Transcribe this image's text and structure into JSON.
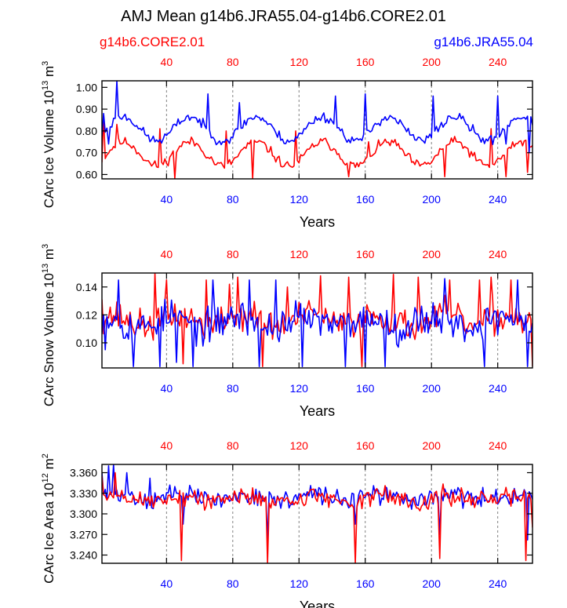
{
  "figure_title": "AMJ Mean g14b6.JRA55.04-g14b6.CORE2.01",
  "legend": {
    "series_a": {
      "label": "g14b6.CORE2.01",
      "color": "#ff0000"
    },
    "series_b": {
      "label": "g14b6.JRA55.04",
      "color": "#0000ff"
    }
  },
  "colors": {
    "axis": "#000000",
    "grid": "#808080",
    "background": "#ffffff"
  },
  "chart_data": [
    {
      "type": "line",
      "title": "",
      "xlabel": "Years",
      "ylabel": "CArc Ice Volume 10^13 m^3",
      "ylabel_parts": {
        "base": "CArc Ice Volume 10",
        "exp1": "13",
        "mid": " m",
        "exp2": "3"
      },
      "xlim": [
        1,
        261
      ],
      "ylim": [
        0.58,
        1.03
      ],
      "yticks": [
        0.6,
        0.7,
        0.8,
        0.9,
        1.0
      ],
      "yticklabels": [
        "0.60",
        "0.70",
        "0.80",
        "0.90",
        "1.00"
      ],
      "xticks": [
        40,
        80,
        120,
        160,
        200,
        240
      ],
      "xticklabels": [
        "40",
        "80",
        "120",
        "160",
        "200",
        "240"
      ],
      "top_xticklabels": [
        "40",
        "80",
        "120",
        "160",
        "200",
        "240"
      ],
      "grid": "vertical dashed at x ticks",
      "series": [
        {
          "name": "g14b6.CORE2.01",
          "key": "a",
          "mean": 0.695,
          "amp": 0.055,
          "phase": 0.6,
          "shape": "cycle",
          "noise": 0.022,
          "seed": 11,
          "spikes": [
            [
              2,
              0.87
            ],
            [
              10,
              0.83
            ],
            [
              36,
              0.81
            ],
            [
              45,
              0.58
            ],
            [
              76,
              0.8
            ],
            [
              92,
              0.58
            ],
            [
              118,
              0.8
            ],
            [
              150,
              0.59
            ],
            [
              162,
              0.75
            ],
            [
              208,
              0.59
            ],
            [
              236,
              0.81
            ],
            [
              245,
              0.59
            ],
            [
              258,
              0.61
            ]
          ]
        },
        {
          "name": "g14b6.JRA55.04",
          "key": "b",
          "mean": 0.81,
          "amp": 0.055,
          "phase": 0.6,
          "shape": "cycle",
          "noise": 0.022,
          "seed": 23,
          "spikes": [
            [
              2,
              0.88
            ],
            [
              5,
              0.74
            ],
            [
              10,
              1.03
            ],
            [
              65,
              0.97
            ],
            [
              84,
              0.93
            ],
            [
              142,
              0.96
            ],
            [
              160,
              0.97
            ],
            [
              201,
              0.96
            ],
            [
              240,
              0.96
            ],
            [
              245,
              0.74
            ],
            [
              259,
              0.7
            ]
          ]
        }
      ]
    },
    {
      "type": "line",
      "title": "",
      "xlabel": "Years",
      "ylabel": "CArc Snow Volume 10^13 m^3",
      "ylabel_parts": {
        "base": "CArc Snow Volume 10",
        "exp1": "13",
        "mid": " m",
        "exp2": "3"
      },
      "xlim": [
        1,
        261
      ],
      "ylim": [
        0.082,
        0.15
      ],
      "yticks": [
        0.1,
        0.12,
        0.14
      ],
      "yticklabels": [
        "0.10",
        "0.12",
        "0.14"
      ],
      "xticks": [
        40,
        80,
        120,
        160,
        200,
        240
      ],
      "xticklabels": [
        "40",
        "80",
        "120",
        "160",
        "200",
        "240"
      ],
      "top_xticklabels": [
        "40",
        "80",
        "120",
        "160",
        "200",
        "240"
      ],
      "grid": "vertical dashed at x ticks",
      "series": [
        {
          "name": "g14b6.CORE2.01",
          "key": "a",
          "mean": 0.116,
          "amp": 0.004,
          "phase": 0.5,
          "shape": "sin",
          "noise": 0.011,
          "seed": 37,
          "spikes": [
            [
              1,
              0.131
            ],
            [
              33,
              0.15
            ],
            [
              40,
              0.145
            ],
            [
              50,
              0.085
            ],
            [
              64,
              0.145
            ],
            [
              78,
              0.142
            ],
            [
              83,
              0.147
            ],
            [
              98,
              0.083
            ],
            [
              113,
              0.14
            ],
            [
              133,
              0.148
            ],
            [
              150,
              0.147
            ],
            [
              158,
              0.083
            ],
            [
              177,
              0.149
            ],
            [
              192,
              0.147
            ],
            [
              211,
              0.145
            ],
            [
              229,
              0.145
            ],
            [
              236,
              0.147
            ],
            [
              248,
              0.145
            ],
            [
              261,
              0.083
            ]
          ]
        },
        {
          "name": "g14b6.JRA55.04",
          "key": "b",
          "mean": 0.115,
          "amp": 0.004,
          "phase": 1.2,
          "shape": "sin",
          "noise": 0.012,
          "seed": 53,
          "spikes": [
            [
              3,
              0.095
            ],
            [
              11,
              0.145
            ],
            [
              20,
              0.083
            ],
            [
              36,
              0.083
            ],
            [
              46,
              0.086
            ],
            [
              56,
              0.083
            ],
            [
              68,
              0.145
            ],
            [
              90,
              0.145
            ],
            [
              96,
              0.083
            ],
            [
              106,
              0.145
            ],
            [
              122,
              0.083
            ],
            [
              148,
              0.083
            ],
            [
              160,
              0.083
            ],
            [
              172,
              0.083
            ],
            [
              208,
              0.146
            ],
            [
              232,
              0.083
            ],
            [
              252,
              0.145
            ],
            [
              258,
              0.083
            ]
          ]
        }
      ]
    },
    {
      "type": "line",
      "title": "",
      "xlabel": "Years",
      "ylabel": "CArc Ice Area 10^12 m^2",
      "ylabel_parts": {
        "base": "CArc Ice Area 10",
        "exp1": "12",
        "mid": " m",
        "exp2": "2"
      },
      "xlim": [
        1,
        261
      ],
      "ylim": [
        3.228,
        3.372
      ],
      "yticks": [
        3.24,
        3.27,
        3.3,
        3.33,
        3.36
      ],
      "yticklabels": [
        "3.240",
        "3.270",
        "3.300",
        "3.330",
        "3.360"
      ],
      "xticks": [
        40,
        80,
        120,
        160,
        200,
        240
      ],
      "xticklabels": [
        "40",
        "80",
        "120",
        "160",
        "200",
        "240"
      ],
      "top_xticklabels": [
        "40",
        "80",
        "120",
        "160",
        "200",
        "240"
      ],
      "grid": "vertical dashed at x ticks",
      "series": [
        {
          "name": "g14b6.JRA55.04",
          "key": "b",
          "mean": 3.324,
          "amp": 0.004,
          "phase": 0.0,
          "shape": "sin",
          "noise": 0.013,
          "seed": 71,
          "spikes": [
            [
              1,
              3.36
            ],
            [
              5,
              3.37
            ],
            [
              8,
              3.372
            ],
            [
              16,
              3.36
            ],
            [
              30,
              3.352
            ],
            [
              42,
              3.342
            ],
            [
              50,
              3.285
            ],
            [
              101,
              3.262
            ],
            [
              154,
              3.285
            ],
            [
              205,
              3.27
            ],
            [
              258,
              3.262
            ]
          ]
        },
        {
          "name": "g14b6.CORE2.01",
          "key": "a",
          "mean": 3.322,
          "amp": 0.004,
          "phase": 0.0,
          "shape": "sin",
          "noise": 0.014,
          "seed": 89,
          "spikes": [
            [
              1,
              3.355
            ],
            [
              4,
              3.32
            ],
            [
              9,
              3.36
            ],
            [
              49,
              3.232
            ],
            [
              101,
              3.228
            ],
            [
              154,
              3.228
            ],
            [
              205,
              3.235
            ],
            [
              257,
              3.232
            ],
            [
              261,
              3.28
            ]
          ]
        }
      ]
    }
  ]
}
